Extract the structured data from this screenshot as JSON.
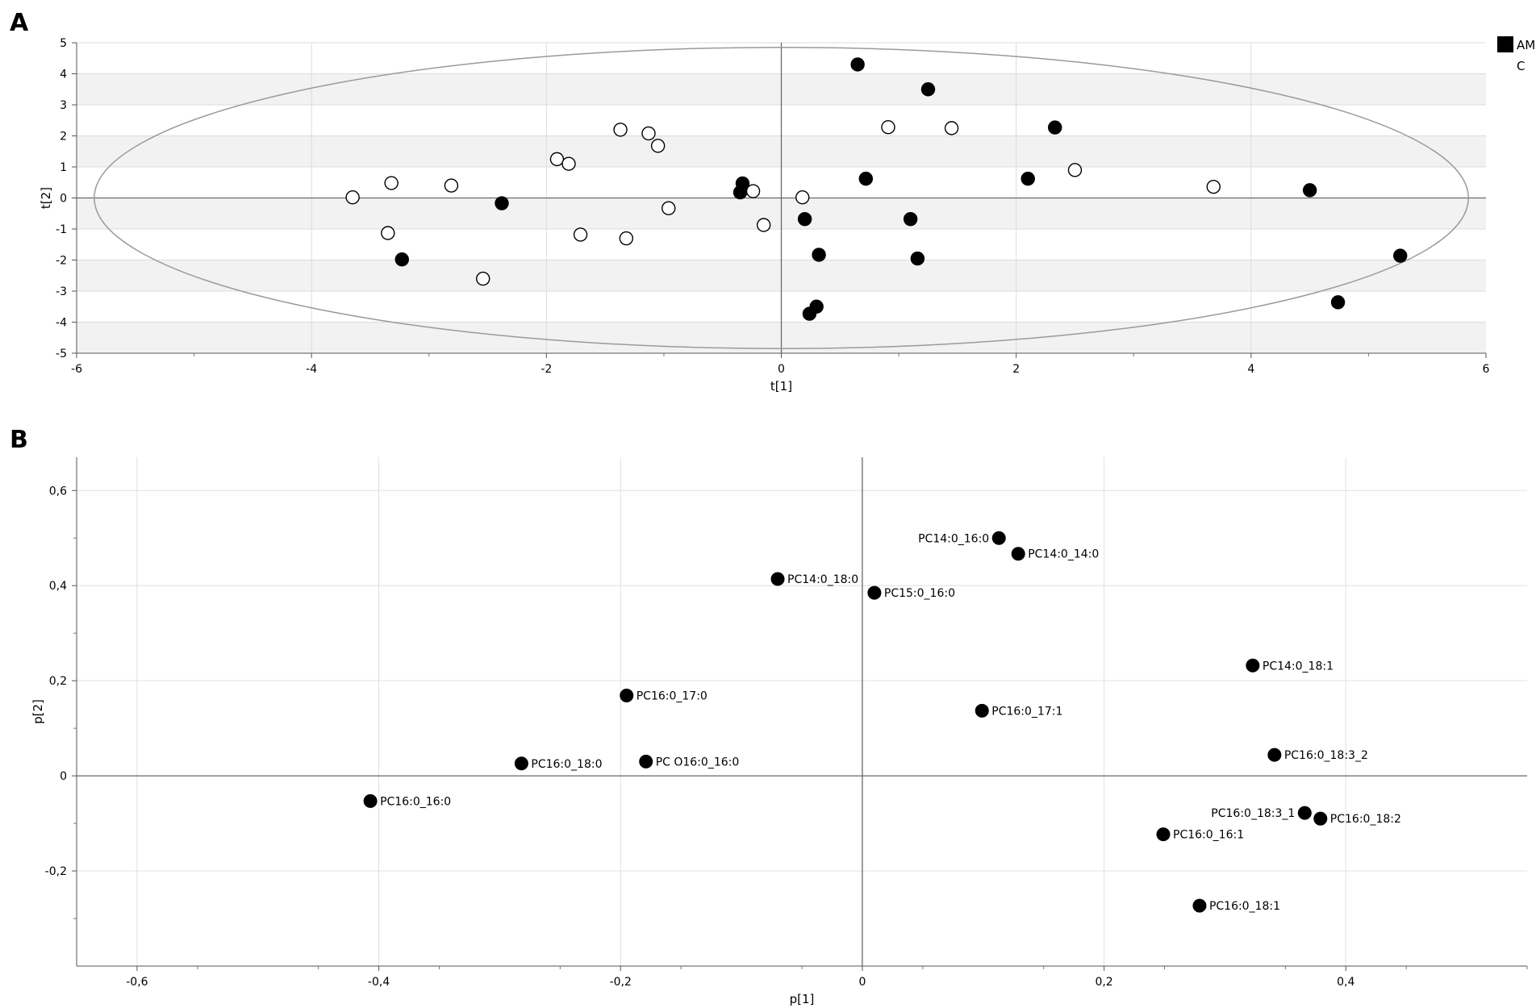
{
  "chart_data": [
    {
      "type": "scatter",
      "panel_label": "A",
      "xlabel": "t[1]",
      "ylabel": "t[2]",
      "xlim": [
        -6,
        6
      ],
      "ylim": [
        -5,
        5
      ],
      "x_ticks": [
        -6,
        -4,
        -2,
        0,
        2,
        4,
        6
      ],
      "y_ticks": [
        -5,
        -4,
        -3,
        -2,
        -1,
        0,
        1,
        2,
        3,
        4,
        5
      ],
      "grid": true,
      "confidence_ellipse": {
        "x_radius": 5.85,
        "y_radius": 4.85
      },
      "legend": {
        "position": "top-right",
        "entries": [
          {
            "name": "AM",
            "fill": "#000000"
          },
          {
            "name": "C",
            "fill": "#ffffff"
          }
        ]
      },
      "series": [
        {
          "name": "AM",
          "fill": "#000000",
          "points": [
            [
              0.65,
              4.3
            ],
            [
              1.25,
              3.5
            ],
            [
              2.33,
              2.27
            ],
            [
              0.72,
              0.62
            ],
            [
              2.1,
              0.62
            ],
            [
              -0.33,
              0.47
            ],
            [
              -0.35,
              0.18
            ],
            [
              -2.38,
              -0.17
            ],
            [
              -3.23,
              -1.98
            ],
            [
              0.2,
              -0.68
            ],
            [
              1.1,
              -0.68
            ],
            [
              0.32,
              -1.83
            ],
            [
              1.16,
              -1.95
            ],
            [
              0.3,
              -3.5
            ],
            [
              0.24,
              -3.73
            ],
            [
              4.5,
              0.25
            ],
            [
              5.27,
              -1.86
            ],
            [
              4.74,
              -3.36
            ]
          ]
        },
        {
          "name": "C",
          "fill": "#ffffff",
          "points": [
            [
              -3.65,
              0.02
            ],
            [
              -3.32,
              0.48
            ],
            [
              -3.35,
              -1.13
            ],
            [
              -2.81,
              0.4
            ],
            [
              -2.54,
              -2.6
            ],
            [
              -1.91,
              1.25
            ],
            [
              -1.81,
              1.1
            ],
            [
              -1.37,
              2.2
            ],
            [
              -1.13,
              2.08
            ],
            [
              -1.05,
              1.68
            ],
            [
              -0.96,
              -0.33
            ],
            [
              -1.71,
              -1.18
            ],
            [
              -1.32,
              -1.3
            ],
            [
              -0.24,
              0.22
            ],
            [
              -0.15,
              -0.87
            ],
            [
              0.18,
              0.02
            ],
            [
              0.91,
              2.28
            ],
            [
              1.45,
              2.25
            ],
            [
              2.5,
              0.9
            ],
            [
              3.68,
              0.36
            ]
          ]
        }
      ]
    },
    {
      "type": "scatter",
      "panel_label": "B",
      "xlabel": "p[1]",
      "ylabel": "p[2]",
      "xlim": [
        -0.65,
        0.55
      ],
      "ylim": [
        -0.4,
        0.67
      ],
      "x_ticks": [
        -0.6,
        -0.4,
        -0.2,
        0,
        0.2,
        0.4
      ],
      "x_tick_labels": [
        "-0,6",
        "-0,4",
        "-0,2",
        "0",
        "0,2",
        "0,4"
      ],
      "y_ticks": [
        -0.2,
        0,
        0.2,
        0.4,
        0.6
      ],
      "y_tick_labels": [
        "-0,2",
        "0",
        "0,2",
        "0,4",
        "0,6"
      ],
      "grid": true,
      "points": [
        {
          "label": "PC14:0_16:0",
          "x": 0.113,
          "y": 0.5,
          "label_side": "left"
        },
        {
          "label": "PC14:0_14:0",
          "x": 0.129,
          "y": 0.467,
          "label_side": "right"
        },
        {
          "label": "PC14:0_18:0",
          "x": -0.07,
          "y": 0.414,
          "label_side": "right"
        },
        {
          "label": "PC15:0_16:0",
          "x": 0.01,
          "y": 0.385,
          "label_side": "right"
        },
        {
          "label": "PC14:0_18:1",
          "x": 0.323,
          "y": 0.232,
          "label_side": "right"
        },
        {
          "label": "PC16:0_17:0",
          "x": -0.195,
          "y": 0.169,
          "label_side": "right"
        },
        {
          "label": "PC16:0_17:1",
          "x": 0.099,
          "y": 0.137,
          "label_side": "right"
        },
        {
          "label": "PC16:0_18:3_2",
          "x": 0.341,
          "y": 0.044,
          "label_side": "right"
        },
        {
          "label": "PC16:0_18:0",
          "x": -0.282,
          "y": 0.026,
          "label_side": "right"
        },
        {
          "label": "PC O16:0_16:0",
          "x": -0.179,
          "y": 0.03,
          "label_side": "right"
        },
        {
          "label": "PC16:0_16:0",
          "x": -0.407,
          "y": -0.053,
          "label_side": "right"
        },
        {
          "label": "PC16:0_18:3_1",
          "x": 0.366,
          "y": -0.078,
          "label_side": "left"
        },
        {
          "label": "PC16:0_18:2",
          "x": 0.379,
          "y": -0.09,
          "label_side": "right"
        },
        {
          "label": "PC16:0_16:1",
          "x": 0.249,
          "y": -0.123,
          "label_side": "right"
        },
        {
          "label": "PC16:0_18:1",
          "x": 0.279,
          "y": -0.273,
          "label_side": "right"
        }
      ]
    }
  ]
}
